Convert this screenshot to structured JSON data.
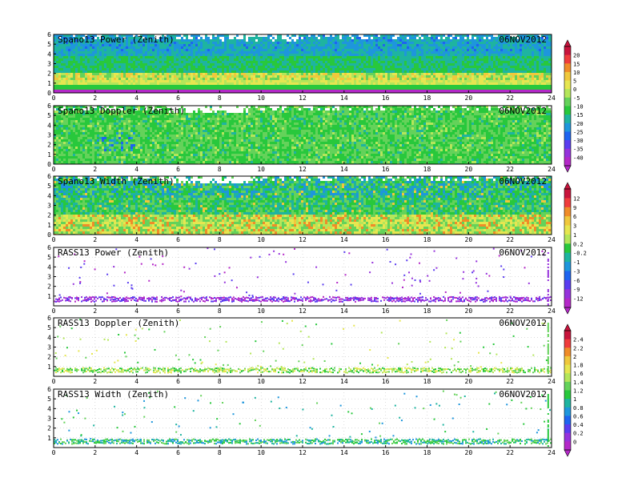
{
  "chart_data": [
    {
      "type": "heatmap",
      "title": "Spano13 Power (Zenith)",
      "date": "06NOV2012",
      "x_ticks": [
        "0",
        "2",
        "4",
        "6",
        "8",
        "10",
        "12",
        "14",
        "16",
        "18",
        "20",
        "22",
        "24"
      ],
      "y_ticks": [
        "0",
        "1",
        "2",
        "3",
        "4",
        "5",
        "6"
      ],
      "xlim": [
        0,
        24
      ],
      "ylim": [
        0,
        6
      ],
      "colorbar_group": "power",
      "density": "full"
    },
    {
      "type": "heatmap",
      "title": "Spano13 Doppler (Zenith)",
      "date": "06NOV2012",
      "x_ticks": [
        "0",
        "2",
        "4",
        "6",
        "8",
        "10",
        "12",
        "14",
        "16",
        "18",
        "20",
        "22",
        "24"
      ],
      "y_ticks": [
        "0",
        "1",
        "2",
        "3",
        "4",
        "5",
        "6"
      ],
      "xlim": [
        0,
        24
      ],
      "ylim": [
        0,
        6
      ],
      "colorbar_group": "power",
      "density": "full"
    },
    {
      "type": "heatmap",
      "title": "Spano13 Width (Zenith)",
      "date": "06NOV2012",
      "x_ticks": [
        "0",
        "2",
        "4",
        "6",
        "8",
        "10",
        "12",
        "14",
        "16",
        "18",
        "20",
        "22",
        "24"
      ],
      "y_ticks": [
        "0",
        "1",
        "2",
        "3",
        "4",
        "5",
        "6"
      ],
      "xlim": [
        0,
        24
      ],
      "ylim": [
        0,
        6
      ],
      "colorbar_group": "width",
      "density": "full"
    },
    {
      "type": "scatter",
      "title": "RASS13 Power (Zenith)",
      "date": "06NOV2012",
      "x_ticks": [
        "0",
        "2",
        "4",
        "6",
        "8",
        "10",
        "12",
        "14",
        "16",
        "18",
        "20",
        "22",
        "24"
      ],
      "y_ticks": [
        "1",
        "2",
        "3",
        "4",
        "5",
        "6"
      ],
      "xlim": [
        0,
        24
      ],
      "ylim": [
        0,
        6
      ],
      "colorbar_group": "width",
      "density": "sparse",
      "band_height_km": 0.75
    },
    {
      "type": "scatter",
      "title": "RASS13 Doppler (Zenith)",
      "date": "06NOV2012",
      "x_ticks": [
        "0",
        "2",
        "4",
        "6",
        "8",
        "10",
        "12",
        "14",
        "16",
        "18",
        "20",
        "22",
        "24"
      ],
      "y_ticks": [
        "1",
        "2",
        "3",
        "4",
        "5",
        "6"
      ],
      "xlim": [
        0,
        24
      ],
      "ylim": [
        0,
        6
      ],
      "colorbar_group": "rass",
      "density": "sparse",
      "band_height_km": 0.7
    },
    {
      "type": "scatter",
      "title": "RASS13 Width (Zenith)",
      "date": "06NOV2012",
      "x_ticks": [
        "0",
        "2",
        "4",
        "6",
        "8",
        "10",
        "12",
        "14",
        "16",
        "18",
        "20",
        "22",
        "24"
      ],
      "y_ticks": [
        "1",
        "2",
        "3",
        "4",
        "5",
        "6"
      ],
      "xlim": [
        0,
        24
      ],
      "ylim": [
        0,
        6
      ],
      "colorbar_group": "rass",
      "density": "sparse",
      "band_height_km": 0.7
    }
  ],
  "colorbars": [
    {
      "name": "power",
      "labels": [
        "20",
        "15",
        "10",
        "5",
        "0",
        "-5",
        "-10",
        "-15",
        "-20",
        "-25",
        "-30",
        "-35",
        "-40"
      ],
      "colors": [
        "#c8143c",
        "#f03c3c",
        "#f08c28",
        "#f0c83c",
        "#e6e650",
        "#b4e65a",
        "#64d25a",
        "#28c83c",
        "#1eb4a0",
        "#1e96dc",
        "#1e64f0",
        "#5a3cf0",
        "#9632dc",
        "#b428c8"
      ]
    },
    {
      "name": "width",
      "labels": [
        "12",
        "9",
        "6",
        "3",
        "1",
        "0.2",
        "-0.2",
        "-1",
        "-3",
        "-6",
        "-9",
        "-12"
      ],
      "colors": [
        "#c8143c",
        "#f03c3c",
        "#f08c28",
        "#f0c83c",
        "#e6e650",
        "#b4e65a",
        "#28c83c",
        "#1eb4a0",
        "#1e96dc",
        "#1e64f0",
        "#5a3cf0",
        "#9632dc",
        "#b428c8"
      ]
    },
    {
      "name": "rass",
      "labels": [
        "2.4",
        "2.2",
        "2",
        "1.8",
        "1.6",
        "1.4",
        "1.2",
        "1",
        "0.8",
        "0.6",
        "0.4",
        "0.2",
        "0"
      ],
      "colors": [
        "#c8143c",
        "#f03c3c",
        "#f08c28",
        "#f0c83c",
        "#e6e650",
        "#b4e65a",
        "#64d25a",
        "#28c83c",
        "#1eb4a0",
        "#1e96dc",
        "#1e64f0",
        "#5a3cf0",
        "#9632dc",
        "#b428c8"
      ]
    }
  ]
}
